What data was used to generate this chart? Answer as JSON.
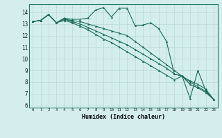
{
  "xlabel": "Humidex (Indice chaleur)",
  "bg_color": "#d4eeee",
  "grid_color": "#b8d8d8",
  "line_color": "#1a6b5a",
  "xlim": [
    -0.5,
    23.5
  ],
  "ylim": [
    5.8,
    14.7
  ],
  "yticks": [
    6,
    7,
    8,
    9,
    10,
    11,
    12,
    13,
    14
  ],
  "xticks": [
    0,
    1,
    2,
    3,
    4,
    5,
    6,
    7,
    8,
    9,
    10,
    11,
    12,
    13,
    14,
    15,
    16,
    17,
    18,
    19,
    20,
    21,
    22,
    23
  ],
  "series": [
    [
      13.2,
      13.3,
      13.8,
      13.1,
      13.5,
      13.4,
      13.4,
      13.5,
      14.2,
      14.4,
      13.6,
      14.35,
      14.35,
      12.85,
      12.9,
      13.1,
      12.6,
      11.5,
      8.7,
      8.5,
      6.6,
      9.0,
      7.25,
      6.5
    ],
    [
      13.2,
      13.3,
      13.8,
      13.1,
      13.4,
      13.3,
      13.2,
      13.0,
      12.8,
      12.6,
      12.4,
      12.2,
      12.0,
      11.5,
      11.0,
      10.5,
      10.0,
      9.5,
      9.0,
      8.5,
      8.1,
      7.8,
      7.4,
      6.5
    ],
    [
      13.2,
      13.3,
      13.8,
      13.1,
      13.4,
      13.2,
      13.0,
      12.7,
      12.4,
      12.1,
      11.8,
      11.5,
      11.2,
      10.8,
      10.4,
      10.0,
      9.6,
      9.2,
      8.7,
      8.5,
      8.0,
      7.6,
      7.2,
      6.5
    ],
    [
      13.2,
      13.3,
      13.8,
      13.1,
      13.3,
      13.1,
      12.8,
      12.5,
      12.1,
      11.7,
      11.4,
      11.0,
      10.6,
      10.2,
      9.8,
      9.4,
      9.0,
      8.6,
      8.2,
      8.5,
      7.8,
      7.5,
      7.1,
      6.5
    ]
  ]
}
